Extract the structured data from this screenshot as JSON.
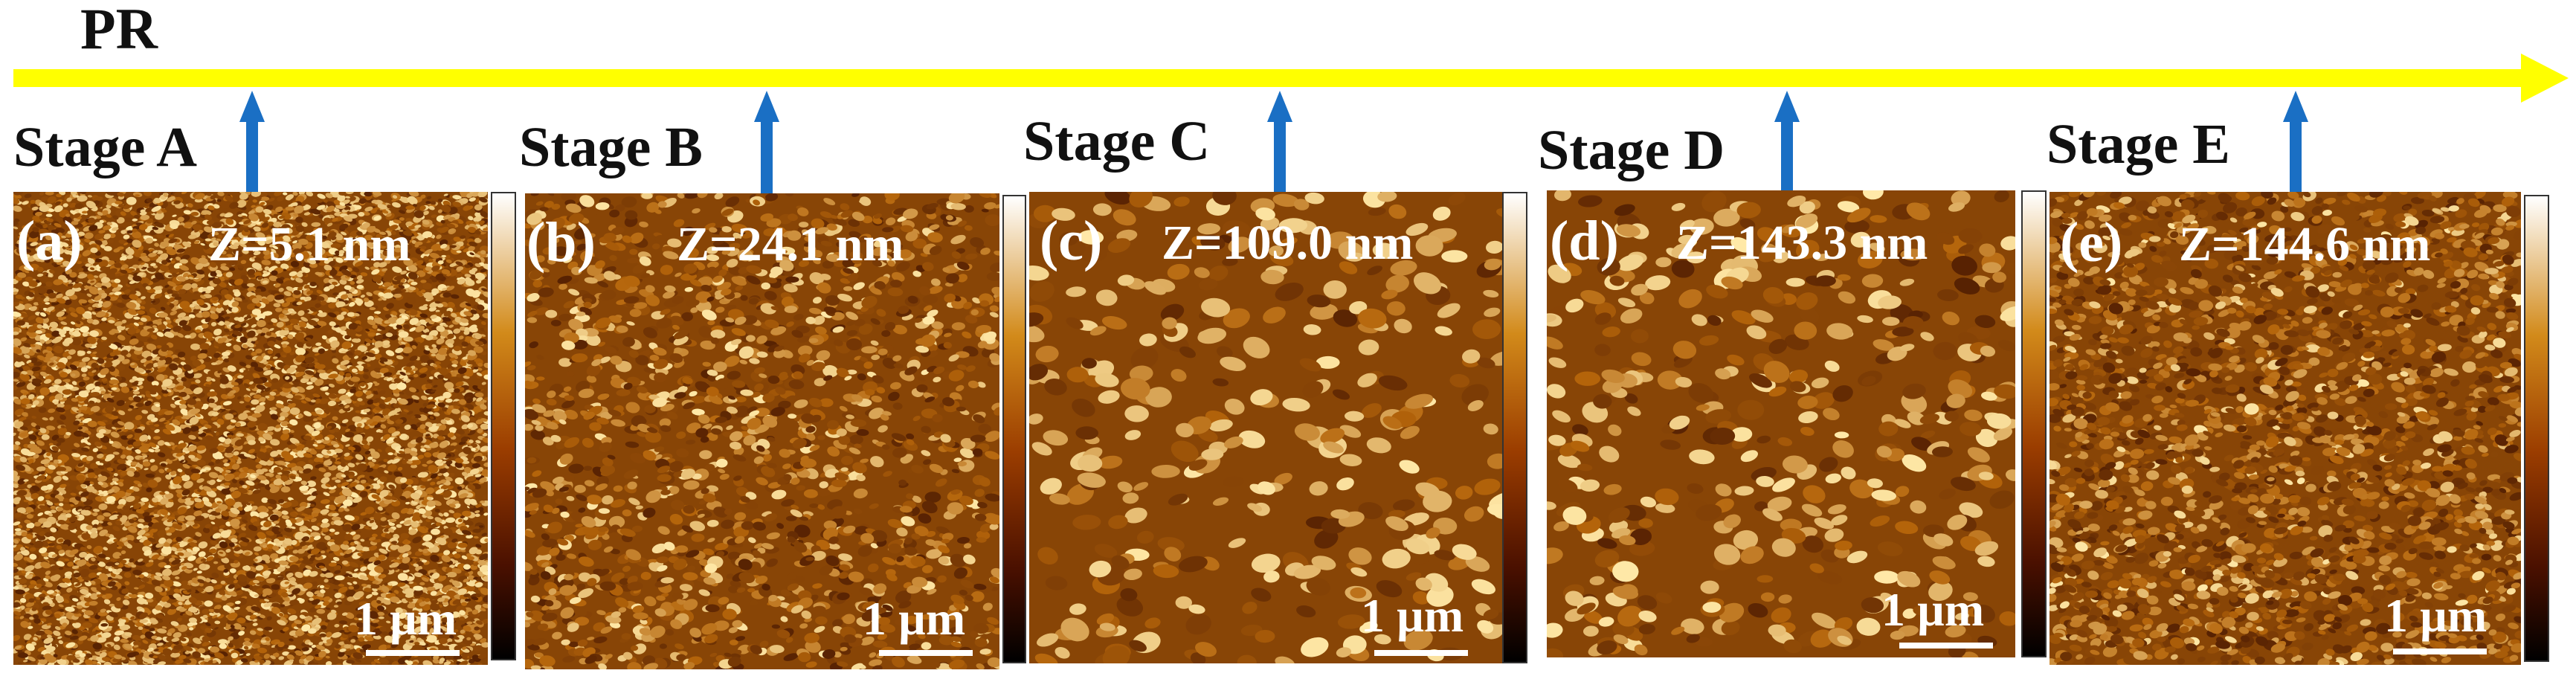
{
  "process": {
    "label": "PR",
    "color": "#ffff00"
  },
  "stages": [
    {
      "stage": "Stage A",
      "panel": "(a)",
      "z_range": "Z=5.1 nm",
      "scale_bar": "1 µm"
    },
    {
      "stage": "Stage B",
      "panel": "(b)",
      "z_range": "Z=24.1 nm",
      "scale_bar": "1 µm"
    },
    {
      "stage": "Stage C",
      "panel": "(c)",
      "z_range": "Z=109.0 nm",
      "scale_bar": "1 µm"
    },
    {
      "stage": "Stage D",
      "panel": "(d)",
      "z_range": "Z=143.3 nm",
      "scale_bar": "1 µm"
    },
    {
      "stage": "Stage E",
      "panel": "(e)",
      "z_range": "Z=144.6 nm",
      "scale_bar": "1 µm"
    }
  ],
  "colors": {
    "arrow": "#1a6fc4",
    "afm_dark": "#3a0d00",
    "afm_mid": "#b4640a",
    "afm_light": "#ffe9a8"
  }
}
